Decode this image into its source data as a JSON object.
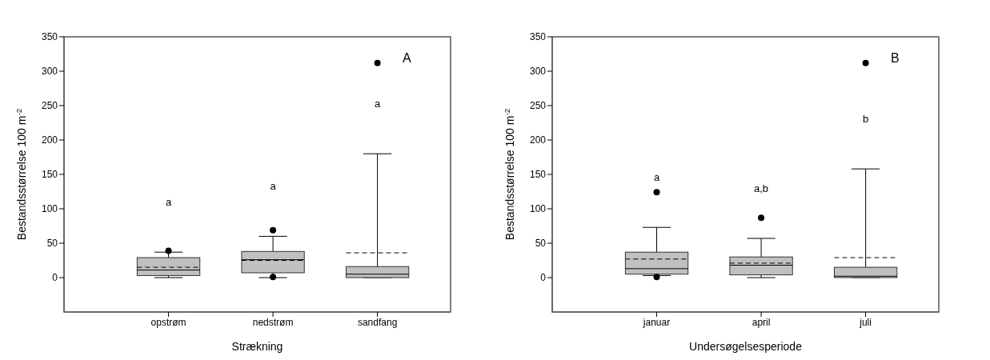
{
  "chart_data": [
    {
      "type": "box",
      "categories": [
        "opstrøm",
        "nedstrøm",
        "sandfang"
      ],
      "color": "#c0c0c0",
      "xlabel": "Strækning",
      "ylabel": "Bestandsstørrelse 100 m$^{-2}$",
      "ylim": [
        -50,
        350
      ],
      "yticks": [
        0,
        50,
        100,
        150,
        200,
        250,
        300,
        350
      ],
      "boxes": [
        {
          "low": 0,
          "q1": 3,
          "median": 11,
          "q3": 29,
          "high": 37,
          "mean": 15,
          "outliers": [
            39
          ]
        },
        {
          "low": 0,
          "q1": 7,
          "median": 26,
          "q3": 38,
          "high": 60,
          "mean": 25,
          "outliers": [
            69,
            1
          ]
        },
        {
          "low": 0,
          "q1": 0,
          "median": 5,
          "q3": 16,
          "high": 180,
          "mean": 36,
          "outliers": [
            312
          ]
        }
      ],
      "annotations": [
        "A",
        "a",
        "a",
        "a"
      ]
    },
    {
      "type": "box",
      "categories": [
        "januar",
        "april",
        "juli"
      ],
      "color": "#c0c0c0",
      "xlabel": "Undersøgelsesperiode",
      "ylabel": "Bestandsstørrelse 100 m$^{-2}$",
      "ylim": [
        -50,
        350
      ],
      "yticks": [
        0,
        50,
        100,
        150,
        200,
        250,
        300,
        350
      ],
      "boxes": [
        {
          "low": 3,
          "q1": 5,
          "median": 13,
          "q3": 37,
          "high": 73,
          "mean": 27,
          "outliers": [
            124,
            1
          ]
        },
        {
          "low": 0,
          "q1": 4,
          "median": 18,
          "q3": 30,
          "high": 57,
          "mean": 21,
          "outliers": [
            87
          ]
        },
        {
          "low": 0,
          "q1": 0,
          "median": 2,
          "q3": 15,
          "high": 158,
          "mean": 29,
          "outliers": [
            312
          ]
        }
      ],
      "annotations": [
        "B",
        "a",
        "a,b",
        "b"
      ]
    }
  ]
}
